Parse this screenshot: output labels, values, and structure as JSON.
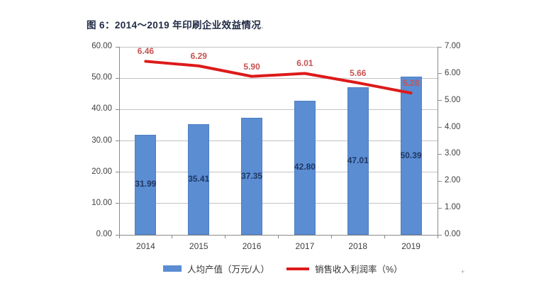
{
  "title": "图 6：2014～2019 年印刷企业效益情况",
  "trailing_mark": ".",
  "stray_mark": "+",
  "colors": {
    "bar": "#5b8dd3",
    "bar_border": "#4e7fc0",
    "line": "#dd1a1a",
    "line_label": "#c65252",
    "bar_label": "#1f3864",
    "axis_text": "#3f3f3f",
    "gridline": "#c3c3c3",
    "axis_line": "#8a8a8a",
    "title": "#1f2a44"
  },
  "chart_data": {
    "type": "bar+line combo",
    "categories": [
      "2014",
      "2015",
      "2016",
      "2017",
      "2018",
      "2019"
    ],
    "series": [
      {
        "name": "人均产值（万元/人）",
        "type": "bar",
        "axis": "left",
        "values": [
          31.99,
          35.41,
          37.35,
          42.8,
          47.01,
          50.39
        ],
        "labels": [
          "31.99",
          "35.41",
          "37.35",
          "42.80",
          "47.01",
          "50.39"
        ]
      },
      {
        "name": "销售收入利润率（%）",
        "type": "line",
        "axis": "right",
        "values": [
          6.46,
          6.29,
          5.9,
          6.01,
          5.66,
          5.28
        ],
        "labels": [
          "6.46",
          "6.29",
          "5.90",
          "6.01",
          "5.66",
          "5.28"
        ]
      }
    ],
    "left_axis": {
      "min": 0,
      "max": 60,
      "step": 10,
      "tick_labels": [
        "0.00",
        "10.00",
        "20.00",
        "30.00",
        "40.00",
        "50.00",
        "60.00"
      ]
    },
    "right_axis": {
      "min": 0,
      "max": 7,
      "step": 1,
      "tick_labels": [
        "0.00",
        "1.00",
        "2.00",
        "3.00",
        "4.00",
        "5.00",
        "6.00",
        "7.00"
      ]
    },
    "grid": "horizontal",
    "legend_position": "bottom",
    "legend": [
      "人均产值（万元/人）",
      "销售收入利润率（%）"
    ]
  }
}
